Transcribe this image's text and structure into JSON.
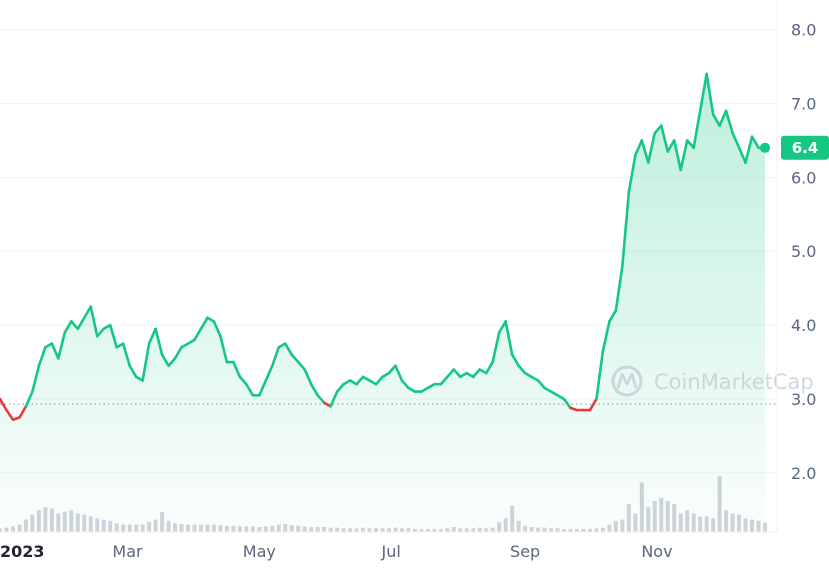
{
  "watermark": {
    "text": "CoinMarketCap",
    "icon": "coinmarketcap-logo-icon"
  },
  "colors": {
    "up": "#16c784",
    "down": "#ea3943",
    "grid": "#eff2f5",
    "axis_text": "#58667e",
    "watermark": "#c3c9d4"
  },
  "chart_data": {
    "type": "line",
    "ylim": [
      1.2,
      8.4
    ],
    "y_ticks": [
      "2.0",
      "3.0",
      "4.0",
      "5.0",
      "6.0",
      "7.0",
      "8.0"
    ],
    "y_tick_values": [
      2.0,
      3.0,
      4.0,
      5.0,
      6.0,
      7.0,
      8.0
    ],
    "x_ticks": [
      "2023",
      "Mar",
      "May",
      "Jul",
      "Sep",
      "Nov"
    ],
    "x_tick_dates": [
      "2023-01-01",
      "2023-03-01",
      "2023-05-01",
      "2023-07-01",
      "2023-09-01",
      "2023-11-01"
    ],
    "xlim": [
      "2023-01-01",
      "2023-12-21"
    ],
    "baseline": 2.93,
    "last_price": 6.4,
    "last_price_label": "6.4",
    "grid": true,
    "series": [
      {
        "x": [
          "2023-01-01",
          "2023-01-04",
          "2023-01-07",
          "2023-01-10",
          "2023-01-13",
          "2023-01-16",
          "2023-01-19",
          "2023-01-22",
          "2023-01-25",
          "2023-01-28",
          "2023-01-31",
          "2023-02-03",
          "2023-02-06",
          "2023-02-09",
          "2023-02-12",
          "2023-02-15",
          "2023-02-18",
          "2023-02-21",
          "2023-02-24",
          "2023-02-27",
          "2023-03-02",
          "2023-03-05",
          "2023-03-08",
          "2023-03-11",
          "2023-03-14",
          "2023-03-17",
          "2023-03-20",
          "2023-03-23",
          "2023-03-26",
          "2023-03-29",
          "2023-04-01",
          "2023-04-04",
          "2023-04-07",
          "2023-04-10",
          "2023-04-13",
          "2023-04-16",
          "2023-04-19",
          "2023-04-22",
          "2023-04-25",
          "2023-04-28",
          "2023-05-01",
          "2023-05-04",
          "2023-05-07",
          "2023-05-10",
          "2023-05-13",
          "2023-05-16",
          "2023-05-19",
          "2023-05-22",
          "2023-05-25",
          "2023-05-28",
          "2023-05-31",
          "2023-06-03",
          "2023-06-06",
          "2023-06-09",
          "2023-06-12",
          "2023-06-15",
          "2023-06-18",
          "2023-06-21",
          "2023-06-24",
          "2023-06-27",
          "2023-06-30",
          "2023-07-03",
          "2023-07-06",
          "2023-07-09",
          "2023-07-12",
          "2023-07-15",
          "2023-07-18",
          "2023-07-21",
          "2023-07-24",
          "2023-07-27",
          "2023-07-30",
          "2023-08-02",
          "2023-08-05",
          "2023-08-08",
          "2023-08-11",
          "2023-08-14",
          "2023-08-17",
          "2023-08-20",
          "2023-08-23",
          "2023-08-26",
          "2023-08-29",
          "2023-09-01",
          "2023-09-04",
          "2023-09-07",
          "2023-09-10",
          "2023-09-13",
          "2023-09-16",
          "2023-09-19",
          "2023-09-22",
          "2023-09-25",
          "2023-09-28",
          "2023-10-01",
          "2023-10-04",
          "2023-10-07",
          "2023-10-10",
          "2023-10-13",
          "2023-10-16",
          "2023-10-19",
          "2023-10-22",
          "2023-10-25",
          "2023-10-28",
          "2023-10-31",
          "2023-11-03",
          "2023-11-06",
          "2023-11-09",
          "2023-11-12",
          "2023-11-15",
          "2023-11-18",
          "2023-11-21",
          "2023-11-24",
          "2023-11-27",
          "2023-11-30",
          "2023-12-03",
          "2023-12-06",
          "2023-12-09",
          "2023-12-12",
          "2023-12-15",
          "2023-12-18",
          "2023-12-21"
        ],
        "values": [
          3.0,
          2.85,
          2.72,
          2.75,
          2.9,
          3.1,
          3.45,
          3.7,
          3.75,
          3.55,
          3.9,
          4.05,
          3.95,
          4.1,
          4.25,
          3.85,
          3.95,
          4.0,
          3.7,
          3.75,
          3.45,
          3.3,
          3.25,
          3.75,
          3.95,
          3.6,
          3.45,
          3.55,
          3.7,
          3.75,
          3.8,
          3.95,
          4.1,
          4.05,
          3.85,
          3.5,
          3.5,
          3.3,
          3.2,
          3.05,
          3.05,
          3.25,
          3.45,
          3.7,
          3.75,
          3.6,
          3.5,
          3.4,
          3.2,
          3.05,
          2.95,
          2.9,
          3.1,
          3.2,
          3.25,
          3.2,
          3.3,
          3.25,
          3.2,
          3.3,
          3.35,
          3.45,
          3.25,
          3.15,
          3.1,
          3.1,
          3.15,
          3.2,
          3.2,
          3.3,
          3.4,
          3.3,
          3.35,
          3.3,
          3.4,
          3.35,
          3.5,
          3.9,
          4.05,
          3.6,
          3.45,
          3.35,
          3.3,
          3.25,
          3.15,
          3.1,
          3.05,
          3.0,
          2.88,
          2.85,
          2.85,
          2.85,
          3.0,
          3.65,
          4.05,
          4.2,
          4.8,
          5.8,
          6.3,
          6.5,
          6.2,
          6.6,
          6.7,
          6.35,
          6.5,
          6.1,
          6.5,
          6.4,
          6.9,
          7.4,
          6.85,
          6.7,
          6.9,
          6.6,
          6.4,
          6.2,
          6.55,
          6.4,
          6.4
        ]
      }
    ],
    "volume_max": 1.0,
    "volume": [
      0.06,
      0.07,
      0.09,
      0.12,
      0.2,
      0.28,
      0.35,
      0.4,
      0.38,
      0.3,
      0.33,
      0.35,
      0.3,
      0.28,
      0.25,
      0.22,
      0.2,
      0.18,
      0.14,
      0.12,
      0.12,
      0.12,
      0.12,
      0.16,
      0.2,
      0.32,
      0.18,
      0.14,
      0.13,
      0.12,
      0.12,
      0.12,
      0.12,
      0.12,
      0.11,
      0.1,
      0.1,
      0.09,
      0.09,
      0.09,
      0.08,
      0.09,
      0.1,
      0.12,
      0.13,
      0.11,
      0.1,
      0.09,
      0.08,
      0.08,
      0.08,
      0.07,
      0.07,
      0.06,
      0.06,
      0.06,
      0.07,
      0.06,
      0.06,
      0.06,
      0.06,
      0.07,
      0.06,
      0.06,
      0.05,
      0.05,
      0.05,
      0.05,
      0.05,
      0.06,
      0.08,
      0.06,
      0.06,
      0.06,
      0.07,
      0.06,
      0.07,
      0.16,
      0.22,
      0.42,
      0.18,
      0.1,
      0.08,
      0.07,
      0.07,
      0.06,
      0.06,
      0.05,
      0.05,
      0.05,
      0.05,
      0.05,
      0.06,
      0.07,
      0.12,
      0.18,
      0.2,
      0.45,
      0.3,
      0.8,
      0.4,
      0.5,
      0.55,
      0.5,
      0.45,
      0.3,
      0.35,
      0.3,
      0.25,
      0.25,
      0.22,
      0.9,
      0.35,
      0.3,
      0.28,
      0.22,
      0.2,
      0.18,
      0.15
    ]
  }
}
